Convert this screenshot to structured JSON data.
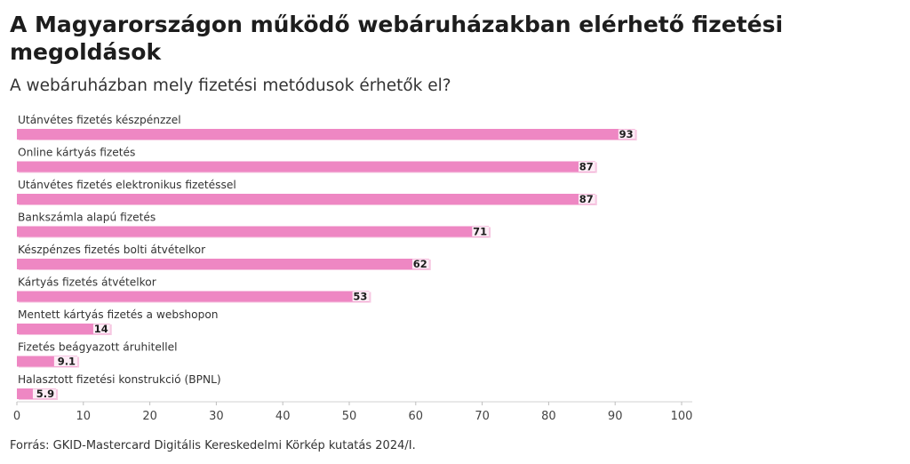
{
  "header": {
    "title": "A Magyarországon működő webáruházakban elérhető fizetési megoldások",
    "subtitle": "A webáruházban mely fizetési metódusok érhetők el?"
  },
  "footer": {
    "source": "Forrás: GKID-Mastercard Digitális Kereskedelmi Körkép kutatás 2024/I."
  },
  "chart_data": {
    "type": "bar",
    "orientation": "horizontal",
    "title": "A Magyarországon működő webáruházakban elérhető fizetési megoldások",
    "subtitle": "A webáruházban mely fizetési metódusok érhetők el?",
    "categories": [
      "Utánvétes fizetés készpénzzel",
      "Online kártyás fizetés",
      "Utánvétes fizetés elektronikus fizetéssel",
      "Bankszámla alapú fizetés",
      "Készpénzes fizetés bolti átvételkor",
      "Kártyás fizetés átvételkor",
      "Mentett kártyás fizetés a webshopon",
      "Fizetés beágyazott áruhitellel",
      "Halasztott fizetési konstrukció (BPNL)"
    ],
    "values": [
      93,
      87,
      87,
      71,
      62,
      53,
      14,
      9.1,
      5.9
    ],
    "value_labels": [
      "93",
      "87",
      "87",
      "71",
      "62",
      "53",
      "14",
      "9.1",
      "5.9"
    ],
    "xlim": [
      0,
      100
    ],
    "xticks": [
      "0",
      "10",
      "20",
      "30",
      "40",
      "50",
      "60",
      "70",
      "80",
      "90",
      "100"
    ],
    "bar_color": "#ee87c3",
    "bar_shadow_color": "#f6c7e1",
    "grid": false
  }
}
